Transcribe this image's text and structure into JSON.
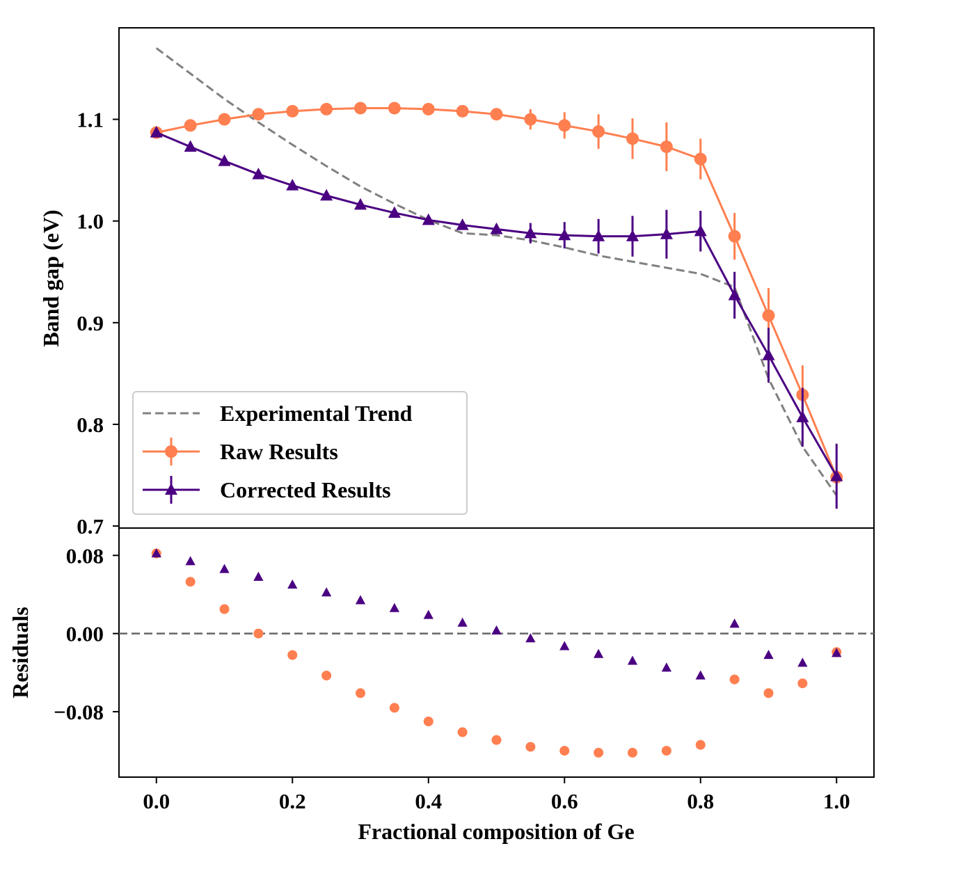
{
  "colors": {
    "experimental": "#808080",
    "raw": "#ff7f50",
    "corrected": "#4b0082",
    "zero_line": "#666666"
  },
  "chart_data": [
    {
      "type": "line",
      "ylabel": "Band gap (eV)",
      "xlim": [
        -0.055,
        1.055
      ],
      "ylim": [
        0.698,
        1.19
      ],
      "yticks": [
        0.7,
        0.8,
        0.9,
        1.0,
        1.1
      ],
      "ytick_labels": [
        "0.7",
        "0.8",
        "0.9",
        "1.0",
        "1.1"
      ],
      "grid": false,
      "legend_position": "lower-left",
      "x": [
        0.0,
        0.05,
        0.1,
        0.15,
        0.2,
        0.25,
        0.3,
        0.35,
        0.4,
        0.45,
        0.5,
        0.55,
        0.6,
        0.65,
        0.7,
        0.75,
        0.8,
        0.85,
        0.9,
        0.95,
        1.0
      ],
      "series": [
        {
          "name": "Experimental Trend",
          "style": "dashed",
          "values": [
            1.17,
            1.145,
            1.12,
            1.097,
            1.075,
            1.054,
            1.034,
            1.017,
            1.001,
            0.988,
            0.986,
            0.981,
            0.974,
            0.966,
            0.96,
            0.954,
            0.948,
            0.935,
            0.845,
            0.778,
            0.73
          ]
        },
        {
          "name": "Raw Results",
          "marker": "circle",
          "values": [
            1.087,
            1.094,
            1.1,
            1.105,
            1.108,
            1.11,
            1.111,
            1.111,
            1.11,
            1.108,
            1.105,
            1.1,
            1.094,
            1.088,
            1.081,
            1.073,
            1.061,
            0.985,
            0.907,
            0.829,
            0.748
          ],
          "errors": [
            0.002,
            0.003,
            0.003,
            0.003,
            0.003,
            0.003,
            0.003,
            0.003,
            0.003,
            0.004,
            0.005,
            0.01,
            0.013,
            0.017,
            0.02,
            0.024,
            0.02,
            0.023,
            0.027,
            0.029,
            0.007
          ]
        },
        {
          "name": "Corrected Results",
          "marker": "triangle",
          "values": [
            1.087,
            1.073,
            1.059,
            1.046,
            1.035,
            1.025,
            1.016,
            1.008,
            1.001,
            0.996,
            0.992,
            0.988,
            0.986,
            0.985,
            0.985,
            0.987,
            0.99,
            0.927,
            0.868,
            0.807,
            0.749
          ],
          "errors": [
            0.002,
            0.003,
            0.003,
            0.003,
            0.003,
            0.003,
            0.003,
            0.003,
            0.003,
            0.004,
            0.005,
            0.01,
            0.013,
            0.017,
            0.02,
            0.024,
            0.02,
            0.023,
            0.027,
            0.029,
            0.032
          ]
        }
      ]
    },
    {
      "type": "scatter",
      "xlabel": "Fractional composition of Ge",
      "ylabel": "Residuals",
      "xlim": [
        -0.055,
        1.055
      ],
      "ylim": [
        -0.147,
        0.108
      ],
      "xticks": [
        0.0,
        0.2,
        0.4,
        0.6,
        0.8,
        1.0
      ],
      "xtick_labels": [
        "0.0",
        "0.2",
        "0.4",
        "0.6",
        "0.8",
        "1.0"
      ],
      "yticks": [
        -0.08,
        0.0,
        0.08
      ],
      "ytick_labels": [
        "−0.08",
        "0.00",
        "0.08"
      ],
      "reference_line": 0.0,
      "x": [
        0.0,
        0.05,
        0.1,
        0.15,
        0.2,
        0.25,
        0.3,
        0.35,
        0.4,
        0.45,
        0.5,
        0.55,
        0.6,
        0.65,
        0.7,
        0.75,
        0.8,
        0.85,
        0.9,
        0.95,
        1.0
      ],
      "series": [
        {
          "marker": "circle",
          "values": [
            0.082,
            0.053,
            0.025,
            0.0,
            -0.022,
            -0.043,
            -0.061,
            -0.076,
            -0.09,
            -0.101,
            -0.109,
            -0.116,
            -0.12,
            -0.122,
            -0.122,
            -0.12,
            -0.114,
            -0.047,
            -0.061,
            -0.051,
            -0.019
          ]
        },
        {
          "marker": "triangle",
          "values": [
            0.082,
            0.074,
            0.066,
            0.058,
            0.05,
            0.042,
            0.034,
            0.026,
            0.019,
            0.011,
            0.003,
            -0.005,
            -0.013,
            -0.021,
            -0.028,
            -0.035,
            -0.043,
            0.01,
            -0.022,
            -0.03,
            -0.02
          ]
        }
      ]
    }
  ]
}
